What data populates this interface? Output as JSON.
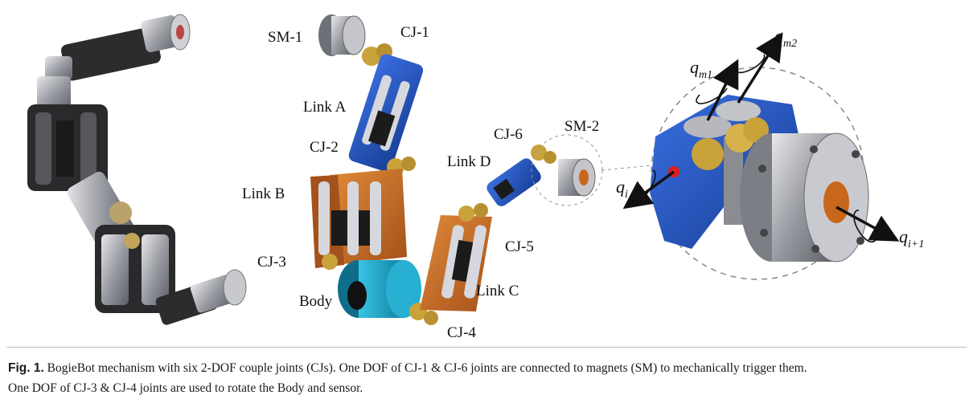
{
  "figure": {
    "labels": {
      "sm1": "SM-1",
      "cj1": "CJ-1",
      "link_a": "Link A",
      "cj2": "CJ-2",
      "link_b": "Link B",
      "cj3": "CJ-3",
      "body": "Body",
      "cj4": "CJ-4",
      "link_c": "Link C",
      "cj5": "CJ-5",
      "link_d": "Link D",
      "cj6": "CJ-6",
      "sm2": "SM-2"
    },
    "joint_detail": {
      "q_m2": {
        "base": "q",
        "sub": "m2"
      },
      "q_m1": {
        "base": "q",
        "sub": "m1"
      },
      "q_i": {
        "base": "q",
        "sub": "i"
      },
      "q_i1": {
        "base": "q",
        "sub": "i+1"
      }
    },
    "colors": {
      "link_blue": "#1e4fb4",
      "link_orange": "#c8661c",
      "body_cyan": "#1aa6c9",
      "gear_gold": "#c9a23a",
      "metal_gray": "#9a9ca3"
    }
  },
  "caption": {
    "label": "Fig. 1.",
    "text_line1": "BogieBot mechanism with six 2-DOF couple joints (CJs). One DOF of CJ-1 & CJ-6 joints are connected to magnets (SM) to mechanically trigger them.",
    "text_line2": "One DOF of CJ-3 & CJ-4 joints are used to rotate the Body and sensor."
  }
}
